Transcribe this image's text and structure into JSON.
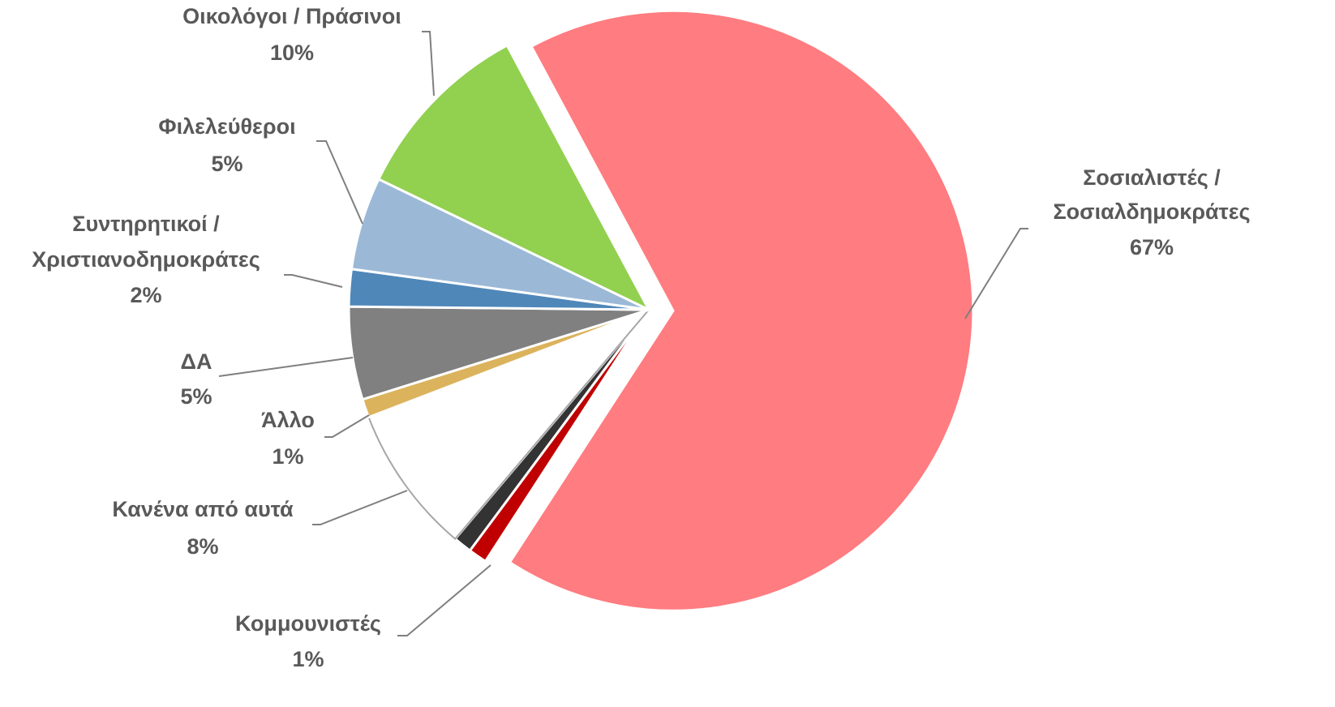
{
  "chart_data": {
    "type": "pie",
    "categories": [
      "Σοσιαλιστές / Σοσιαλδημοκράτες",
      "Κομμουνιστές",
      null,
      "Κανένα από αυτά",
      "Άλλο",
      "ΔΑ",
      "Συντηρητικοί / Χριστιανοδημοκράτες",
      "Φιλελεύθεροι",
      "Οικολόγοι / Πράσινοι"
    ],
    "values": [
      67,
      1,
      1,
      8,
      1,
      5,
      2,
      5,
      10
    ],
    "value_labels": [
      "67%",
      "1%",
      null,
      "8%",
      "1%",
      "5%",
      "2%",
      "5%",
      "10%"
    ],
    "colors": [
      "#ff7c80",
      "#c00000",
      "#333333",
      "#ffffff",
      "#dbb35c",
      "#808080",
      "#4f87b9",
      "#9bb9d7",
      "#92d050"
    ]
  }
}
